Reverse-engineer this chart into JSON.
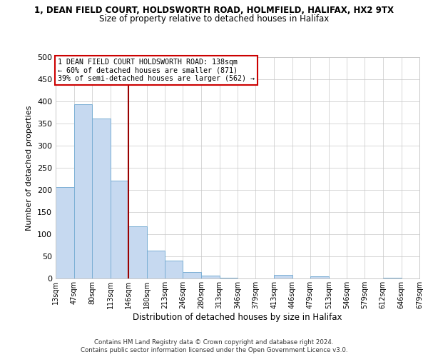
{
  "title_line1": "1, DEAN FIELD COURT, HOLDSWORTH ROAD, HOLMFIELD, HALIFAX, HX2 9TX",
  "title_line2": "Size of property relative to detached houses in Halifax",
  "xlabel": "Distribution of detached houses by size in Halifax",
  "ylabel": "Number of detached properties",
  "bar_color": "#c6d9f0",
  "bar_edge_color": "#7bafd4",
  "grid_color": "#c8c8c8",
  "vline_color": "#990000",
  "annotation_box_text": "1 DEAN FIELD COURT HOLDSWORTH ROAD: 138sqm\n← 60% of detached houses are smaller (871)\n39% of semi-detached houses are larger (562) →",
  "annotation_box_color": "#ffffff",
  "annotation_box_edge_color": "#cc0000",
  "footnote1": "Contains HM Land Registry data © Crown copyright and database right 2024.",
  "footnote2": "Contains public sector information licensed under the Open Government Licence v3.0.",
  "bin_edges": [
    13,
    47,
    80,
    113,
    146,
    180,
    213,
    246,
    280,
    313,
    346,
    379,
    413,
    446,
    479,
    513,
    546,
    579,
    612,
    646,
    679
  ],
  "bin_labels": [
    "13sqm",
    "47sqm",
    "80sqm",
    "113sqm",
    "146sqm",
    "180sqm",
    "213sqm",
    "246sqm",
    "280sqm",
    "313sqm",
    "346sqm",
    "379sqm",
    "413sqm",
    "446sqm",
    "479sqm",
    "513sqm",
    "546sqm",
    "579sqm",
    "612sqm",
    "646sqm",
    "679sqm"
  ],
  "bar_heights": [
    207,
    393,
    362,
    221,
    117,
    63,
    40,
    15,
    6,
    1,
    0,
    0,
    8,
    0,
    5,
    0,
    0,
    0,
    1,
    0
  ],
  "ylim": [
    0,
    500
  ],
  "yticks": [
    0,
    50,
    100,
    150,
    200,
    250,
    300,
    350,
    400,
    450,
    500
  ],
  "background_color": "#ffffff",
  "vline_bin_index": 4
}
